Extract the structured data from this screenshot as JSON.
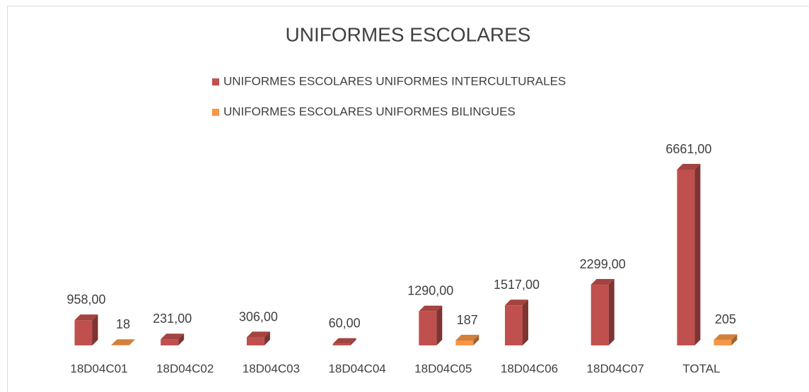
{
  "chart_data": {
    "type": "bar3d",
    "title": "UNIFORMES ESCOLARES",
    "categories": [
      "18D04C01",
      "18D04C02",
      "18D04C03",
      "18D04C04",
      "18D04C05",
      "18D04C06",
      "18D04C07",
      "TOTAL"
    ],
    "series": [
      {
        "name": "UNIFORMES ESCOLARES UNIFORMES INTERCULTURALES",
        "color": "#c0504d",
        "values": [
          958,
          231,
          306,
          60,
          1290,
          1517,
          2299,
          6661
        ],
        "value_labels": [
          "958,00",
          "231,00",
          "306,00",
          "60,00",
          "1290,00",
          "1517,00",
          "2299,00",
          "6661,00"
        ]
      },
      {
        "name": "UNIFORMES ESCOLARES UNIFORMES BILINGUES",
        "color": "#f79646",
        "values": [
          18,
          null,
          null,
          null,
          187,
          null,
          null,
          205
        ],
        "value_labels": [
          "18",
          null,
          null,
          null,
          "187",
          null,
          null,
          "205"
        ]
      }
    ]
  }
}
